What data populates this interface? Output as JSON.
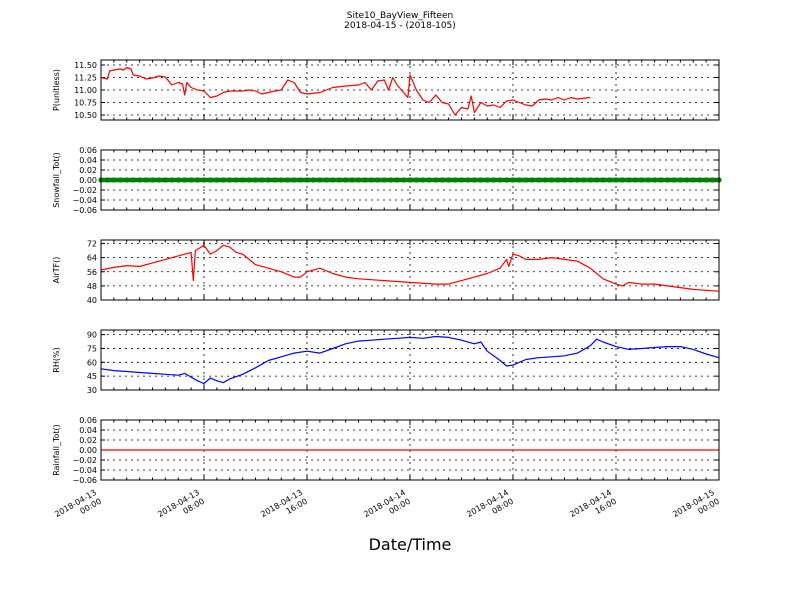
{
  "figure": {
    "title": "Site10_BayView_Fifteen",
    "subtitle": "2018-04-15 - (2018-105)",
    "xlabel": "Date/Time"
  },
  "chart_data": [
    {
      "type": "line",
      "ylabel": "P(unitless)",
      "color": "#ff0000",
      "ylim": [
        10.4,
        11.6
      ],
      "yticks": [
        "11.50",
        "11.25",
        "11.00",
        "10.75",
        "10.50"
      ],
      "ytick_values": [
        11.5,
        11.25,
        11.0,
        10.75,
        10.5
      ],
      "xlim": [
        "2018-04-13 00:00",
        "2018-04-15 00:00"
      ],
      "grid": true,
      "series": [
        {
          "values": [
            [
              "2018-04-13 00:00",
              11.25
            ],
            [
              "2018-04-13 00:30",
              11.22
            ],
            [
              "2018-04-13 00:40",
              11.38
            ],
            [
              "2018-04-13 01:00",
              11.4
            ],
            [
              "2018-04-13 01:30",
              11.42
            ],
            [
              "2018-04-13 01:45",
              11.4
            ],
            [
              "2018-04-13 02:00",
              11.45
            ],
            [
              "2018-04-13 02:20",
              11.42
            ],
            [
              "2018-04-13 02:30",
              11.3
            ],
            [
              "2018-04-13 03:00",
              11.28
            ],
            [
              "2018-04-13 03:30",
              11.22
            ],
            [
              "2018-04-13 04:00",
              11.24
            ],
            [
              "2018-04-13 04:30",
              11.28
            ],
            [
              "2018-04-13 05:00",
              11.26
            ],
            [
              "2018-04-13 05:30",
              11.1
            ],
            [
              "2018-04-13 06:00",
              11.15
            ],
            [
              "2018-04-13 06:20",
              11.12
            ],
            [
              "2018-04-13 06:30",
              10.9
            ],
            [
              "2018-04-13 06:40",
              11.15
            ],
            [
              "2018-04-13 07:00",
              11.05
            ],
            [
              "2018-04-13 07:30",
              11.0
            ],
            [
              "2018-04-13 08:00",
              10.98
            ],
            [
              "2018-04-13 08:30",
              10.85
            ],
            [
              "2018-04-13 09:00",
              10.88
            ],
            [
              "2018-04-13 09:30",
              10.95
            ],
            [
              "2018-04-13 10:00",
              10.98
            ],
            [
              "2018-04-13 10:30",
              10.98
            ],
            [
              "2018-04-13 11:00",
              10.98
            ],
            [
              "2018-04-13 11:30",
              11.0
            ],
            [
              "2018-04-13 12:00",
              10.98
            ],
            [
              "2018-04-13 12:30",
              10.92
            ],
            [
              "2018-04-13 13:00",
              10.95
            ],
            [
              "2018-04-13 13:30",
              10.98
            ],
            [
              "2018-04-13 14:00",
              11.0
            ],
            [
              "2018-04-13 14:30",
              11.2
            ],
            [
              "2018-04-13 15:00",
              11.15
            ],
            [
              "2018-04-13 15:30",
              10.95
            ],
            [
              "2018-04-13 16:00",
              10.92
            ],
            [
              "2018-04-13 17:00",
              10.95
            ],
            [
              "2018-04-13 18:00",
              11.05
            ],
            [
              "2018-04-13 19:00",
              11.08
            ],
            [
              "2018-04-13 20:00",
              11.1
            ],
            [
              "2018-04-13 20:30",
              11.15
            ],
            [
              "2018-04-13 21:00",
              11.0
            ],
            [
              "2018-04-13 21:30",
              11.18
            ],
            [
              "2018-04-13 22:00",
              11.2
            ],
            [
              "2018-04-13 22:20",
              11.0
            ],
            [
              "2018-04-13 22:40",
              11.25
            ],
            [
              "2018-04-13 23:00",
              11.1
            ],
            [
              "2018-04-13 23:30",
              10.95
            ],
            [
              "2018-04-13 23:50",
              10.85
            ],
            [
              "2018-04-14 00:00",
              11.3
            ],
            [
              "2018-04-14 00:30",
              11.0
            ],
            [
              "2018-04-14 01:00",
              10.8
            ],
            [
              "2018-04-14 01:30",
              10.75
            ],
            [
              "2018-04-14 02:00",
              10.9
            ],
            [
              "2018-04-14 02:30",
              10.75
            ],
            [
              "2018-04-14 03:00",
              10.72
            ],
            [
              "2018-04-14 03:30",
              10.5
            ],
            [
              "2018-04-14 04:00",
              10.65
            ],
            [
              "2018-04-14 04:30",
              10.62
            ],
            [
              "2018-04-14 04:45",
              10.88
            ],
            [
              "2018-04-14 05:00",
              10.55
            ],
            [
              "2018-04-14 05:30",
              10.75
            ],
            [
              "2018-04-14 06:00",
              10.68
            ],
            [
              "2018-04-14 06:30",
              10.7
            ],
            [
              "2018-04-14 07:00",
              10.65
            ],
            [
              "2018-04-14 07:30",
              10.78
            ],
            [
              "2018-04-14 08:00",
              10.8
            ],
            [
              "2018-04-14 08:30",
              10.75
            ],
            [
              "2018-04-14 09:00",
              10.7
            ],
            [
              "2018-04-14 09:30",
              10.68
            ],
            [
              "2018-04-14 10:00",
              10.8
            ],
            [
              "2018-04-14 10:30",
              10.82
            ],
            [
              "2018-04-14 11:00",
              10.8
            ],
            [
              "2018-04-14 11:30",
              10.85
            ],
            [
              "2018-04-14 12:00",
              10.8
            ],
            [
              "2018-04-14 12:30",
              10.85
            ],
            [
              "2018-04-14 13:00",
              10.82
            ],
            [
              "2018-04-14 14:00",
              10.85
            ]
          ]
        }
      ]
    },
    {
      "type": "line",
      "ylabel": "Snowfall_Tot()",
      "color": "#008000",
      "ylim": [
        -0.06,
        0.06
      ],
      "yticks": [
        "0.06",
        "0.04",
        "0.02",
        "0.00",
        "−0.02",
        "−0.04",
        "−0.06"
      ],
      "ytick_values": [
        0.06,
        0.04,
        0.02,
        0.0,
        -0.02,
        -0.04,
        -0.06
      ],
      "xlim": [
        "2018-04-13 00:00",
        "2018-04-15 00:00"
      ],
      "grid": true,
      "marker": "dot",
      "series": [
        {
          "values": [
            [
              "2018-04-13 00:00",
              0.0
            ],
            [
              "2018-04-15 00:00",
              0.0
            ]
          ]
        }
      ]
    },
    {
      "type": "line",
      "ylabel": "AirTF()",
      "color": "#ff0000",
      "ylim": [
        40,
        74
      ],
      "yticks": [
        "72",
        "64",
        "56",
        "48",
        "40"
      ],
      "ytick_values": [
        72,
        64,
        56,
        48,
        40
      ],
      "xlim": [
        "2018-04-13 00:00",
        "2018-04-15 00:00"
      ],
      "grid": true,
      "series": [
        {
          "values": [
            [
              "2018-04-13 00:00",
              57
            ],
            [
              "2018-04-13 01:00",
              58.5
            ],
            [
              "2018-04-13 02:00",
              59.5
            ],
            [
              "2018-04-13 03:00",
              59
            ],
            [
              "2018-04-13 04:00",
              61
            ],
            [
              "2018-04-13 05:00",
              63
            ],
            [
              "2018-04-13 06:00",
              65
            ],
            [
              "2018-04-13 07:00",
              67
            ],
            [
              "2018-04-13 07:10",
              51
            ],
            [
              "2018-04-13 07:20",
              68
            ],
            [
              "2018-04-13 08:00",
              71
            ],
            [
              "2018-04-13 08:30",
              66
            ],
            [
              "2018-04-13 09:00",
              68
            ],
            [
              "2018-04-13 09:30",
              71
            ],
            [
              "2018-04-13 10:00",
              70
            ],
            [
              "2018-04-13 10:30",
              67
            ],
            [
              "2018-04-13 11:00",
              66
            ],
            [
              "2018-04-13 11:30",
              63
            ],
            [
              "2018-04-13 12:00",
              60
            ],
            [
              "2018-04-13 13:00",
              58
            ],
            [
              "2018-04-13 14:00",
              56
            ],
            [
              "2018-04-13 15:00",
              53
            ],
            [
              "2018-04-13 15:30",
              53
            ],
            [
              "2018-04-13 16:00",
              56
            ],
            [
              "2018-04-13 17:00",
              58
            ],
            [
              "2018-04-13 18:00",
              55
            ],
            [
              "2018-04-13 19:00",
              53
            ],
            [
              "2018-04-13 20:00",
              52
            ],
            [
              "2018-04-13 22:00",
              51
            ],
            [
              "2018-04-14 00:00",
              50
            ],
            [
              "2018-04-14 02:00",
              49
            ],
            [
              "2018-04-14 03:00",
              49
            ],
            [
              "2018-04-14 04:00",
              51
            ],
            [
              "2018-04-14 05:00",
              53
            ],
            [
              "2018-04-14 06:00",
              55
            ],
            [
              "2018-04-14 07:00",
              58
            ],
            [
              "2018-04-14 07:30",
              63
            ],
            [
              "2018-04-14 07:40",
              59
            ],
            [
              "2018-04-14 08:00",
              66
            ],
            [
              "2018-04-14 08:30",
              65
            ],
            [
              "2018-04-14 09:00",
              63
            ],
            [
              "2018-04-14 10:00",
              63
            ],
            [
              "2018-04-14 11:00",
              64
            ],
            [
              "2018-04-14 12:00",
              63
            ],
            [
              "2018-04-14 13:00",
              62
            ],
            [
              "2018-04-14 14:00",
              58
            ],
            [
              "2018-04-14 15:00",
              52
            ],
            [
              "2018-04-14 16:00",
              49
            ],
            [
              "2018-04-14 16:30",
              48
            ],
            [
              "2018-04-14 17:00",
              50
            ],
            [
              "2018-04-14 18:00",
              49
            ],
            [
              "2018-04-14 19:00",
              49
            ],
            [
              "2018-04-14 20:00",
              48
            ],
            [
              "2018-04-14 21:00",
              47
            ],
            [
              "2018-04-14 22:00",
              46
            ],
            [
              "2018-04-14 23:00",
              45.5
            ],
            [
              "2018-04-15 00:00",
              45
            ]
          ]
        }
      ]
    },
    {
      "type": "line",
      "ylabel": "RH(%)",
      "color": "#0000ff",
      "ylim": [
        30,
        95
      ],
      "yticks": [
        "90",
        "75",
        "60",
        "45",
        "30"
      ],
      "ytick_values": [
        90,
        75,
        60,
        45,
        30
      ],
      "xlim": [
        "2018-04-13 00:00",
        "2018-04-15 00:00"
      ],
      "grid": true,
      "series": [
        {
          "values": [
            [
              "2018-04-13 00:00",
              53
            ],
            [
              "2018-04-13 01:00",
              51
            ],
            [
              "2018-04-13 02:00",
              50
            ],
            [
              "2018-04-13 03:00",
              49
            ],
            [
              "2018-04-13 04:00",
              48
            ],
            [
              "2018-04-13 05:00",
              47
            ],
            [
              "2018-04-13 06:00",
              46
            ],
            [
              "2018-04-13 06:30",
              48
            ],
            [
              "2018-04-13 07:00",
              44
            ],
            [
              "2018-04-13 07:30",
              40
            ],
            [
              "2018-04-13 08:00",
              37
            ],
            [
              "2018-04-13 08:30",
              43
            ],
            [
              "2018-04-13 09:00",
              40
            ],
            [
              "2018-04-13 09:30",
              38
            ],
            [
              "2018-04-13 10:00",
              42
            ],
            [
              "2018-04-13 11:00",
              47
            ],
            [
              "2018-04-13 12:00",
              54
            ],
            [
              "2018-04-13 13:00",
              62
            ],
            [
              "2018-04-13 14:00",
              66
            ],
            [
              "2018-04-13 15:00",
              70
            ],
            [
              "2018-04-13 16:00",
              72
            ],
            [
              "2018-04-13 17:00",
              70
            ],
            [
              "2018-04-13 18:00",
              75
            ],
            [
              "2018-04-13 19:00",
              80
            ],
            [
              "2018-04-13 20:00",
              83
            ],
            [
              "2018-04-13 21:00",
              84
            ],
            [
              "2018-04-13 22:00",
              85
            ],
            [
              "2018-04-13 23:00",
              86
            ],
            [
              "2018-04-14 00:00",
              87
            ],
            [
              "2018-04-14 01:00",
              86
            ],
            [
              "2018-04-14 02:00",
              88
            ],
            [
              "2018-04-14 03:00",
              87
            ],
            [
              "2018-04-14 04:00",
              84
            ],
            [
              "2018-04-14 05:00",
              80
            ],
            [
              "2018-04-14 05:30",
              82
            ],
            [
              "2018-04-14 06:00",
              72
            ],
            [
              "2018-04-14 07:00",
              62
            ],
            [
              "2018-04-14 07:30",
              56
            ],
            [
              "2018-04-14 08:00",
              57
            ],
            [
              "2018-04-14 09:00",
              63
            ],
            [
              "2018-04-14 10:00",
              65
            ],
            [
              "2018-04-14 11:00",
              66
            ],
            [
              "2018-04-14 12:00",
              67
            ],
            [
              "2018-04-14 13:00",
              70
            ],
            [
              "2018-04-14 14:00",
              78
            ],
            [
              "2018-04-14 14:30",
              85
            ],
            [
              "2018-04-14 15:00",
              82
            ],
            [
              "2018-04-14 16:00",
              77
            ],
            [
              "2018-04-14 17:00",
              74
            ],
            [
              "2018-04-14 18:00",
              75
            ],
            [
              "2018-04-14 19:00",
              76
            ],
            [
              "2018-04-14 20:00",
              77
            ],
            [
              "2018-04-14 21:00",
              77
            ],
            [
              "2018-04-14 22:00",
              74
            ],
            [
              "2018-04-14 23:00",
              69
            ],
            [
              "2018-04-15 00:00",
              65
            ]
          ]
        }
      ]
    },
    {
      "type": "line",
      "ylabel": "Rainfall_Tot()",
      "color": "#ff0000",
      "ylim": [
        -0.06,
        0.06
      ],
      "yticks": [
        "0.06",
        "0.04",
        "0.02",
        "0.00",
        "−0.02",
        "−0.04",
        "−0.06"
      ],
      "ytick_values": [
        0.06,
        0.04,
        0.02,
        0.0,
        -0.02,
        -0.04,
        -0.06
      ],
      "xlim": [
        "2018-04-13 00:00",
        "2018-04-15 00:00"
      ],
      "grid": true,
      "series": [
        {
          "values": [
            [
              "2018-04-13 00:00",
              0.0
            ],
            [
              "2018-04-15 00:00",
              0.0
            ]
          ]
        }
      ]
    }
  ],
  "xticks": [
    {
      "at": "2018-04-13 00:00",
      "line1": "2018-04-13",
      "line2": "00:00"
    },
    {
      "at": "2018-04-13 08:00",
      "line1": "2018-04-13",
      "line2": "08:00"
    },
    {
      "at": "2018-04-13 16:00",
      "line1": "2018-04-13",
      "line2": "16:00"
    },
    {
      "at": "2018-04-14 00:00",
      "line1": "2018-04-14",
      "line2": "00:00"
    },
    {
      "at": "2018-04-14 08:00",
      "line1": "2018-04-14",
      "line2": "08:00"
    },
    {
      "at": "2018-04-14 16:00",
      "line1": "2018-04-14",
      "line2": "16:00"
    },
    {
      "at": "2018-04-15 00:00",
      "line1": "2018-04-15",
      "line2": "00:00"
    }
  ]
}
